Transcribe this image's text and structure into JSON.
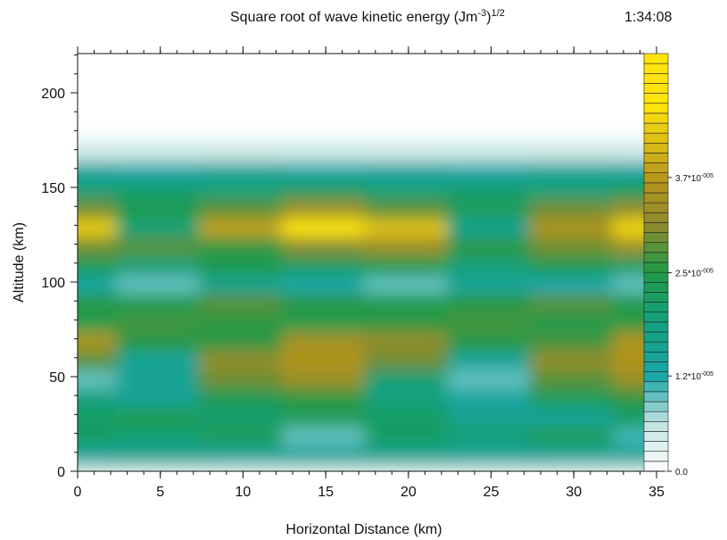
{
  "chart_data": {
    "type": "contour",
    "title": [
      "Square root of wave kinetic energy (Jm",
      "-3",
      ")",
      "1/2"
    ],
    "timestamp": "1:34:08",
    "x_label": "Horizontal Distance (km)",
    "y_label": "Altitude (km)",
    "xlim": [
      0,
      35
    ],
    "ylim": [
      0,
      220
    ],
    "xticks": [
      0,
      5,
      10,
      15,
      20,
      25,
      30,
      35
    ],
    "yticks": [
      0,
      50,
      100,
      150,
      200
    ],
    "x_minor_step": 1,
    "y_minor_step": 10,
    "x": [
      0,
      5,
      10,
      15,
      20,
      25,
      30,
      35
    ],
    "y": [
      0,
      10,
      20,
      30,
      40,
      50,
      60,
      70,
      80,
      90,
      100,
      110,
      120,
      130,
      140,
      150,
      160,
      170
    ],
    "z": [
      [
        4e-06,
        4e-06,
        4e-06,
        4e-06,
        4e-06,
        4e-06,
        4e-06,
        4e-06
      ],
      [
        1.5e-05,
        1.6e-05,
        1.4e-05,
        1.5e-05,
        1.6e-05,
        1.5e-05,
        1.4e-05,
        1.5e-05
      ],
      [
        2.2e-05,
        2e-05,
        2.3e-05,
        1e-05,
        2.2e-05,
        2e-05,
        2.3e-05,
        1.1e-05
      ],
      [
        2.2e-05,
        2.4e-05,
        2.1e-05,
        2.3e-05,
        2.2e-05,
        1.6e-05,
        1.4e-05,
        2.2e-05
      ],
      [
        1.8e-05,
        1.4e-05,
        2.3e-05,
        2.6e-05,
        1.8e-05,
        1.3e-05,
        2.3e-05,
        2.6e-05
      ],
      [
        1e-05,
        1.6e-05,
        2.9e-05,
        3.3e-05,
        2e-05,
        9e-06,
        2.8e-05,
        3.3e-05
      ],
      [
        2.8e-05,
        1.5e-05,
        3.2e-05,
        3.6e-05,
        3e-05,
        1.4e-05,
        3.2e-05,
        3.6e-05
      ],
      [
        3.6e-05,
        2.6e-05,
        2.6e-05,
        3.4e-05,
        3.2e-05,
        2.6e-05,
        2.7e-05,
        3.6e-05
      ],
      [
        2.5e-05,
        2.7e-05,
        2.6e-05,
        2.5e-05,
        2.6e-05,
        2.7e-05,
        2.5e-05,
        2.6e-05
      ],
      [
        2.6e-05,
        2.5e-05,
        2.8e-05,
        2.6e-05,
        2.5e-05,
        2.6e-05,
        2.8e-05,
        2.5e-05
      ],
      [
        1.3e-05,
        1e-05,
        1.6e-05,
        1.2e-05,
        1e-05,
        1.5e-05,
        1.2e-05,
        1e-05
      ],
      [
        2.3e-05,
        2e-05,
        2.5e-05,
        2.2e-05,
        2.4e-05,
        2e-05,
        2.5e-05,
        2.2e-05
      ],
      [
        3e-05,
        2.8e-05,
        2.6e-05,
        3.1e-05,
        3.3e-05,
        2.6e-05,
        2.9e-05,
        3.3e-05
      ],
      [
        4.3e-05,
        2e-05,
        3.8e-05,
        4.7e-05,
        4.2e-05,
        1.6e-05,
        3.6e-05,
        4.5e-05
      ],
      [
        3e-05,
        2.4e-05,
        2.8e-05,
        3.3e-05,
        2.8e-05,
        2.3e-05,
        3e-05,
        3.2e-05
      ],
      [
        2e-05,
        2.1e-05,
        2e-05,
        2.2e-05,
        2e-05,
        2.1e-05,
        2e-05,
        2.2e-05
      ],
      [
        1.3e-05,
        1.2e-05,
        1.4e-05,
        1.2e-05,
        1.3e-05,
        1.2e-05,
        1.4e-05,
        1.3e-05
      ],
      [
        4e-06,
        4e-06,
        4e-06,
        4e-06,
        4e-06,
        4e-06,
        4e-06,
        4e-06
      ]
    ],
    "zlim": [
      0,
      5.26e-05
    ],
    "levels": 42,
    "zticks": [
      {
        "value": 0,
        "label": "0.0"
      },
      {
        "value": 1.2e-05,
        "label": "1.2*10",
        "exponent": "-005"
      },
      {
        "value": 2.5e-05,
        "label": "2.5*10",
        "exponent": "-005"
      },
      {
        "value": 3.7e-05,
        "label": "3.7*10",
        "exponent": "-005"
      }
    ],
    "colormap": [
      {
        "value": 0,
        "color": "#ffffff"
      },
      {
        "value": 6e-06,
        "color": "#bfe3e0"
      },
      {
        "value": 1.2e-05,
        "color": "#1aa6a8"
      },
      {
        "value": 1.9e-05,
        "color": "#14a07c"
      },
      {
        "value": 2.5e-05,
        "color": "#1f9a48"
      },
      {
        "value": 3.1e-05,
        "color": "#8d8a2c"
      },
      {
        "value": 3.7e-05,
        "color": "#b9971c"
      },
      {
        "value": 4.6e-05,
        "color": "#ffe40a"
      },
      {
        "value": 5.26e-05,
        "color": "#ffe40a"
      }
    ]
  }
}
